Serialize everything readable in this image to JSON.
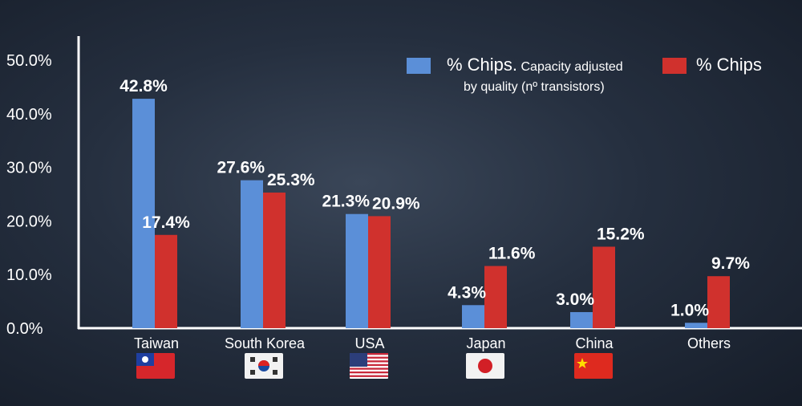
{
  "chart_data": {
    "type": "bar",
    "title": "",
    "xlabel": "",
    "ylabel": "",
    "ylim": [
      0,
      50
    ],
    "yticks": [
      "0.0%",
      "10.0%",
      "20.0%",
      "30.0%",
      "40.0%",
      "50.0%"
    ],
    "categories": [
      "Taiwan",
      "South Korea",
      "USA",
      "Japan",
      "China",
      "Others"
    ],
    "flags": [
      "flag-taiwan",
      "flag-south-korea",
      "flag-usa",
      "flag-japan",
      "flag-china",
      ""
    ],
    "series": [
      {
        "name": "% Chips. Capacity adjusted by quality (nº transistors)",
        "name_main": "% Chips.",
        "name_rest1": "Capacity adjusted",
        "name_rest2": "by quality (nº transistors)",
        "color": "#5b8fd8",
        "values": [
          42.8,
          27.6,
          21.3,
          4.3,
          3.0,
          1.0
        ],
        "labels": [
          "42.8%",
          "27.6%",
          "21.3%",
          "4.3%",
          "3.0%",
          "1.0%"
        ]
      },
      {
        "name": "% Chips",
        "color": "#d0312d",
        "values": [
          17.4,
          25.3,
          20.9,
          11.6,
          15.2,
          9.7
        ],
        "labels": [
          "17.4%",
          "25.3%",
          "20.9%",
          "11.6%",
          "15.2%",
          "9.7%"
        ]
      }
    ],
    "legend": "top-right",
    "grid": false
  }
}
